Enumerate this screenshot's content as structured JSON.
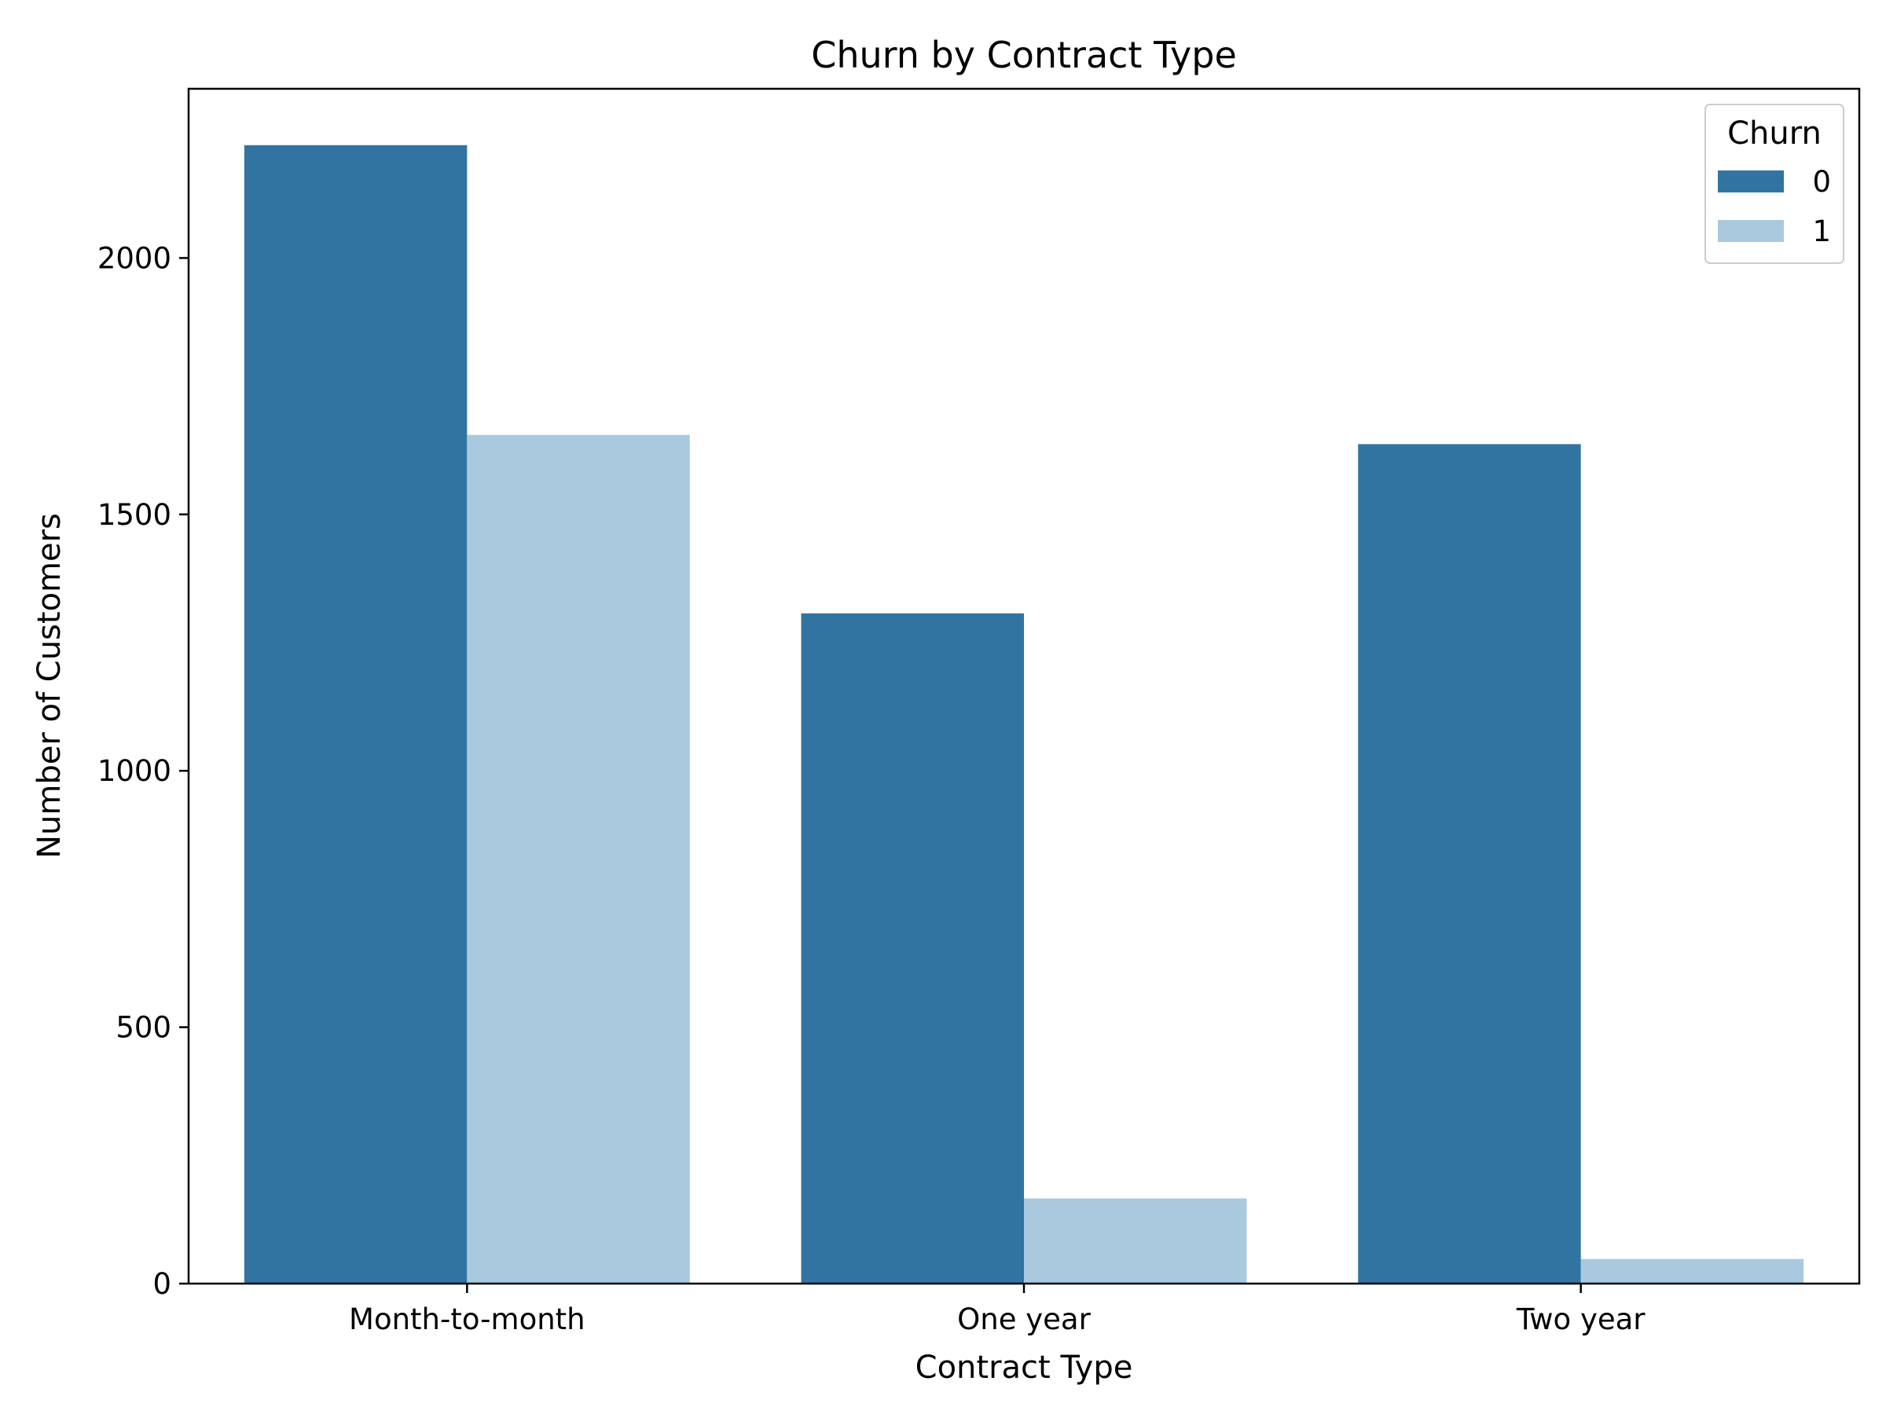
{
  "chart_data": {
    "type": "bar",
    "title": "Churn by Contract Type",
    "xlabel": "Contract Type",
    "ylabel": "Number of Customers",
    "categories": [
      "Month-to-month",
      "One year",
      "Two year"
    ],
    "series": [
      {
        "name": "0",
        "values": [
          2220,
          1307,
          1637
        ],
        "color": "#3274a1"
      },
      {
        "name": "1",
        "values": [
          1655,
          166,
          48
        ],
        "color": "#a9c9df"
      }
    ],
    "ylim": [
      0,
      2330
    ],
    "yticks": [
      0,
      500,
      1000,
      1500,
      2000
    ],
    "grid": false,
    "legend": {
      "title": "Churn",
      "position": "top-right"
    }
  }
}
